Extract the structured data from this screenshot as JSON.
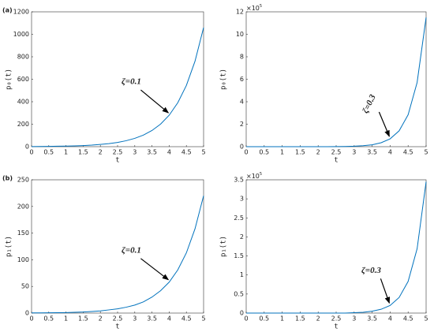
{
  "chart_data": [
    {
      "type": "line",
      "panel_label": "(a)",
      "xlabel": "t",
      "ylabel": "p₀(t)",
      "x": [
        0,
        0.25,
        0.5,
        0.75,
        1,
        1.25,
        1.5,
        1.75,
        2,
        2.25,
        2.5,
        2.75,
        3,
        3.25,
        3.5,
        3.75,
        4,
        4.25,
        4.5,
        4.75,
        5
      ],
      "series": [
        {
          "color": "#0072bd",
          "values": [
            1,
            2,
            3,
            4,
            5,
            7,
            10,
            14,
            20,
            27,
            38,
            53,
            74,
            103,
            144,
            201,
            280,
            391,
            545,
            760,
            1060
          ]
        }
      ],
      "xlim": [
        0,
        5
      ],
      "xticks": [
        0,
        0.5,
        1,
        1.5,
        2,
        2.5,
        3,
        3.5,
        4,
        4.5,
        5
      ],
      "ylim": [
        0,
        1200
      ],
      "yticks": [
        0,
        200,
        400,
        600,
        800,
        1000,
        1200
      ],
      "annotation": {
        "text": "ζ=0.1",
        "x": 4
      }
    },
    {
      "type": "line",
      "xlabel": "t",
      "ylabel": "p₀(t)",
      "y_multiplier": "×10",
      "y_multiplier_exp": "5",
      "x": [
        0,
        0.25,
        0.5,
        0.75,
        1,
        1.25,
        1.5,
        1.75,
        2,
        2.25,
        2.5,
        2.75,
        3,
        3.25,
        3.5,
        3.75,
        4,
        4.25,
        4.5,
        4.75,
        5
      ],
      "series": [
        {
          "color": "#0072bd",
          "values": [
            0,
            0,
            0,
            0,
            0,
            0,
            0,
            0,
            0,
            0,
            0.01,
            0.02,
            0.04,
            0.09,
            0.17,
            0.35,
            0.7,
            1.41,
            2.84,
            5.71,
            11.5
          ]
        }
      ],
      "xlim": [
        0,
        5
      ],
      "xticks": [
        0,
        0.5,
        1,
        1.5,
        2,
        2.5,
        3,
        3.5,
        4,
        4.5,
        5
      ],
      "ylim": [
        0,
        12
      ],
      "yticks": [
        0,
        2,
        4,
        6,
        8,
        10,
        12
      ],
      "annotation": {
        "text": "ζ=0.3",
        "x": 4
      }
    },
    {
      "type": "line",
      "panel_label": "(b)",
      "xlabel": "t",
      "ylabel": "p₁(t)",
      "x": [
        0,
        0.25,
        0.5,
        0.75,
        1,
        1.25,
        1.5,
        1.75,
        2,
        2.25,
        2.5,
        2.75,
        3,
        3.25,
        3.5,
        3.75,
        4,
        4.25,
        4.5,
        4.75,
        5
      ],
      "series": [
        {
          "color": "#0072bd",
          "values": [
            0.3,
            0.4,
            0.6,
            0.8,
            1,
            1.5,
            2,
            3,
            4,
            6,
            8,
            11,
            15,
            21,
            30,
            42,
            58,
            81,
            113,
            158,
            220
          ]
        }
      ],
      "xlim": [
        0,
        5
      ],
      "xticks": [
        0,
        0.5,
        1,
        1.5,
        2,
        2.5,
        3,
        3.5,
        4,
        4.5,
        5
      ],
      "ylim": [
        0,
        250
      ],
      "yticks": [
        0,
        50,
        100,
        150,
        200,
        250
      ],
      "annotation": {
        "text": "ζ=0.1",
        "x": 4
      }
    },
    {
      "type": "line",
      "xlabel": "t",
      "ylabel": "p₁(t)",
      "y_multiplier": "×10",
      "y_multiplier_exp": "5",
      "x": [
        0,
        0.25,
        0.5,
        0.75,
        1,
        1.25,
        1.5,
        1.75,
        2,
        2.25,
        2.5,
        2.75,
        3,
        3.25,
        3.5,
        3.75,
        4,
        4.25,
        4.5,
        4.75,
        5
      ],
      "series": [
        {
          "color": "#0072bd",
          "values": [
            0,
            0,
            0,
            0,
            0,
            0,
            0,
            0,
            0,
            0,
            0,
            0,
            0.01,
            0.02,
            0.05,
            0.1,
            0.2,
            0.41,
            0.83,
            1.69,
            3.45
          ]
        }
      ],
      "xlim": [
        0,
        5
      ],
      "xticks": [
        0,
        0.5,
        1,
        1.5,
        2,
        2.5,
        3,
        3.5,
        4,
        4.5,
        5
      ],
      "ylim": [
        0,
        3.5
      ],
      "yticks": [
        0,
        0.5,
        1,
        1.5,
        2,
        2.5,
        3,
        3.5
      ],
      "annotation": {
        "text": "ζ=0.3",
        "x": 4
      }
    }
  ]
}
